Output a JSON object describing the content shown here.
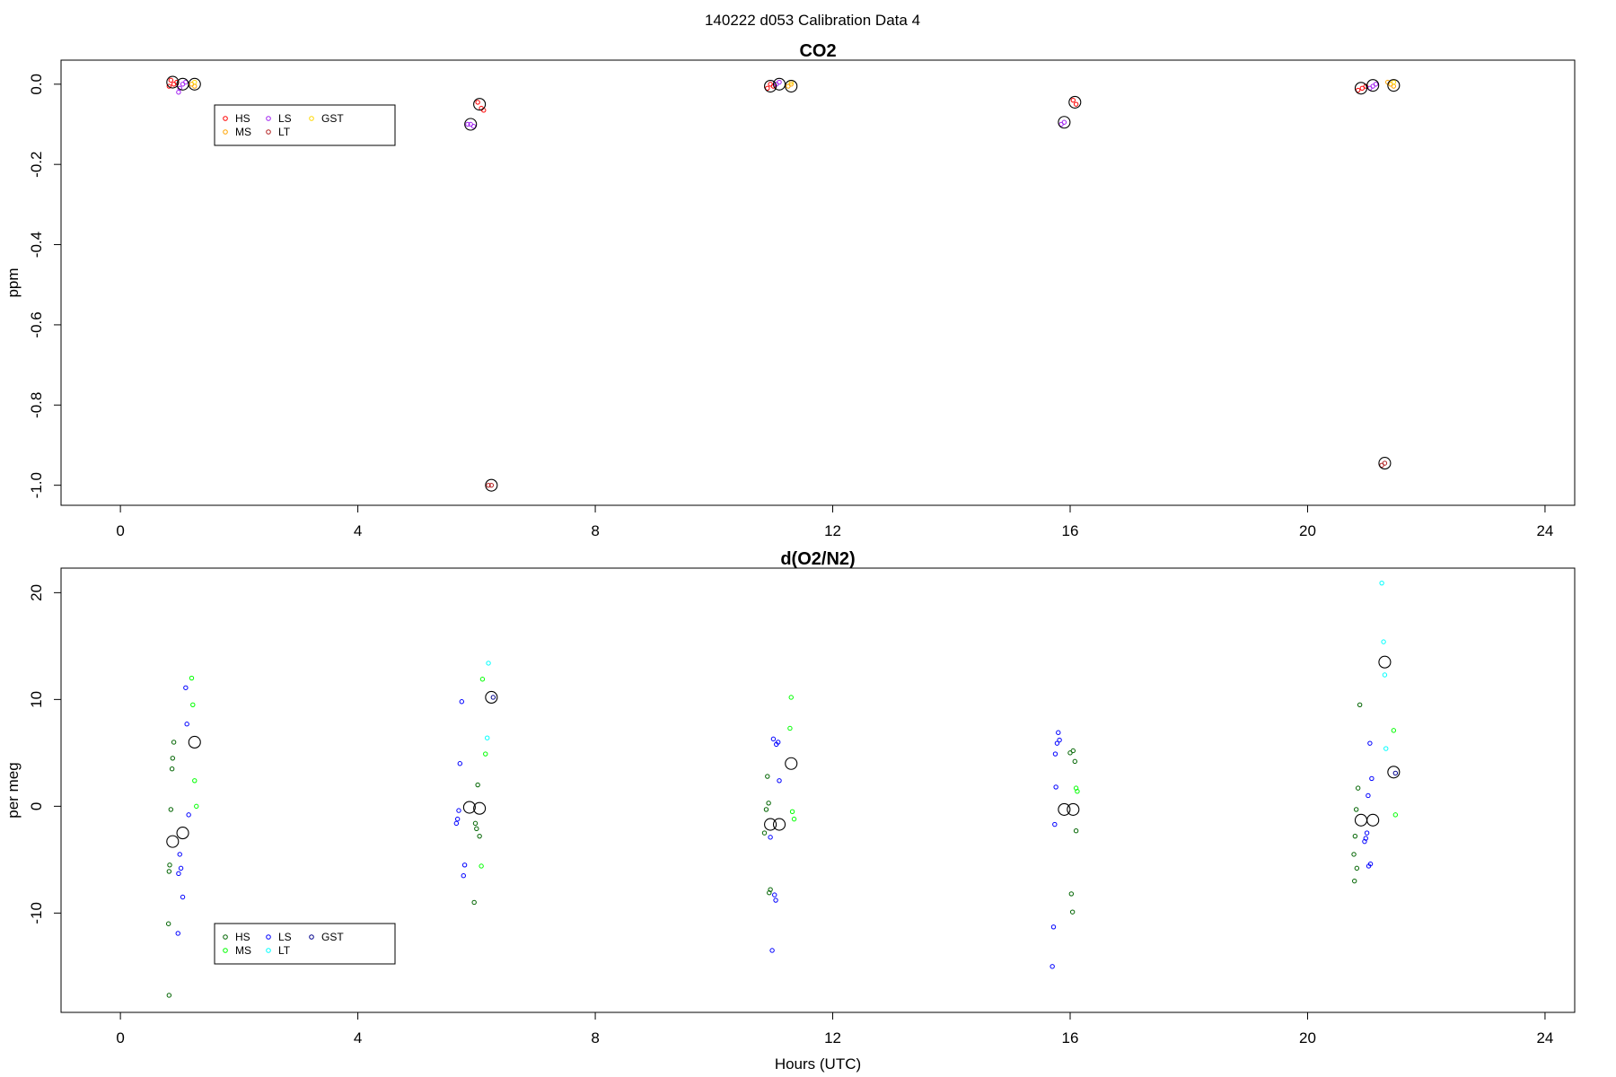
{
  "suptitle": "140222   d053   Calibration Data 4",
  "chart_data": [
    {
      "type": "scatter",
      "title": "CO2",
      "xlabel": "",
      "ylabel": "ppm",
      "xlim": [
        -1.0,
        24.5
      ],
      "ylim": [
        -1.05,
        0.06
      ],
      "xticks": [
        0,
        4,
        8,
        12,
        16,
        20,
        24
      ],
      "xticklabels": [
        "0",
        "4",
        "8",
        "12",
        "16",
        "20",
        "24"
      ],
      "yticks": [
        0.0,
        -0.2,
        -0.4,
        -0.6,
        -0.8,
        -1.0
      ],
      "yticklabels": [
        "0.0",
        "-0.2",
        "-0.4",
        "-0.6",
        "-0.8",
        "-1.0"
      ],
      "grid": false,
      "legend": {
        "placement": "top-left",
        "entries": [
          {
            "label": "HS",
            "color": "#ff0000"
          },
          {
            "label": "MS",
            "color": "#ffa500"
          },
          {
            "label": "LS",
            "color": "#a020f0"
          },
          {
            "label": "LT",
            "color": "#b22222"
          },
          {
            "label": "GST",
            "color": "#ffd700"
          }
        ]
      },
      "series": [
        {
          "name": "HS",
          "color": "#ff0000",
          "points": [
            [
              0.85,
              0.01
            ],
            [
              0.9,
              0.0
            ],
            [
              0.95,
              0.005
            ],
            [
              0.82,
              -0.005
            ],
            [
              6.02,
              -0.045
            ],
            [
              6.08,
              -0.06
            ],
            [
              6.12,
              -0.065
            ],
            [
              10.9,
              -0.01
            ],
            [
              10.95,
              0.0
            ],
            [
              11.0,
              -0.005
            ],
            [
              16.05,
              -0.04
            ],
            [
              16.1,
              -0.05
            ],
            [
              20.85,
              -0.015
            ],
            [
              20.92,
              -0.01
            ],
            [
              20.98,
              -0.005
            ]
          ]
        },
        {
          "name": "MS",
          "color": "#ffa500",
          "points": [
            [
              1.2,
              0.0
            ],
            [
              1.25,
              -0.005
            ],
            [
              11.25,
              -0.005
            ],
            [
              11.3,
              0.0
            ],
            [
              21.4,
              0.0
            ],
            [
              21.45,
              -0.005
            ],
            [
              21.35,
              0.005
            ]
          ]
        },
        {
          "name": "LS",
          "color": "#a020f0",
          "points": [
            [
              1.0,
              -0.01
            ],
            [
              1.05,
              0.0
            ],
            [
              1.1,
              0.005
            ],
            [
              0.98,
              -0.02
            ],
            [
              5.85,
              -0.1
            ],
            [
              5.9,
              -0.1
            ],
            [
              5.95,
              -0.105
            ],
            [
              11.05,
              0.0
            ],
            [
              11.1,
              0.005
            ],
            [
              15.85,
              -0.1
            ],
            [
              15.9,
              -0.095
            ],
            [
              21.1,
              -0.005
            ],
            [
              21.15,
              0.0
            ],
            [
              21.05,
              -0.01
            ]
          ]
        },
        {
          "name": "LT",
          "color": "#b22222",
          "points": [
            [
              6.25,
              -1.0
            ],
            [
              6.2,
              -1.0
            ],
            [
              21.3,
              -0.945
            ],
            [
              21.25,
              -0.95
            ]
          ]
        },
        {
          "name": "GST",
          "color": "#ffd700",
          "points": [
            [
              1.25,
              0.005
            ],
            [
              11.3,
              0.005
            ],
            [
              21.45,
              0.005
            ]
          ]
        },
        {
          "name": "",
          "color": "#000000",
          "big": true,
          "points": [
            [
              0.88,
              0.005
            ],
            [
              1.05,
              0.0
            ],
            [
              1.25,
              0.0
            ],
            [
              5.9,
              -0.1
            ],
            [
              6.05,
              -0.05
            ],
            [
              6.25,
              -1.0
            ],
            [
              10.95,
              -0.005
            ],
            [
              11.1,
              0.0
            ],
            [
              11.3,
              -0.005
            ],
            [
              15.9,
              -0.095
            ],
            [
              16.08,
              -0.045
            ],
            [
              20.9,
              -0.01
            ],
            [
              21.1,
              -0.003
            ],
            [
              21.3,
              -0.945
            ],
            [
              21.45,
              -0.003
            ]
          ]
        }
      ]
    },
    {
      "type": "scatter",
      "title": "d(O2/N2)",
      "xlabel": "Hours (UTC)",
      "ylabel": "per meg",
      "xlim": [
        -1.0,
        24.5
      ],
      "ylim": [
        -19.3,
        22.3
      ],
      "xticks": [
        0,
        4,
        8,
        12,
        16,
        20,
        24
      ],
      "xticklabels": [
        "0",
        "4",
        "8",
        "12",
        "16",
        "20",
        "24"
      ],
      "yticks": [
        20,
        10,
        0,
        -10
      ],
      "yticklabels": [
        "20",
        "10",
        "0",
        "-10"
      ],
      "grid": false,
      "legend": {
        "placement": "bottom-left",
        "entries": [
          {
            "label": "HS",
            "color": "#006400"
          },
          {
            "label": "MS",
            "color": "#00ff00"
          },
          {
            "label": "LS",
            "color": "#0000ff"
          },
          {
            "label": "LT",
            "color": "#00ffff"
          },
          {
            "label": "GST",
            "color": "#00008b"
          }
        ]
      },
      "series": [
        {
          "name": "HS",
          "color": "#006400",
          "points": [
            [
              0.9,
              6.0
            ],
            [
              0.88,
              4.5
            ],
            [
              0.87,
              3.5
            ],
            [
              0.85,
              -0.3
            ],
            [
              0.83,
              -5.5
            ],
            [
              0.82,
              -6.1
            ],
            [
              0.81,
              -11.0
            ],
            [
              0.82,
              -17.7
            ],
            [
              6.02,
              2.0
            ],
            [
              6.0,
              -2.1
            ],
            [
              5.98,
              -1.6
            ],
            [
              5.96,
              -9.0
            ],
            [
              6.05,
              -2.8
            ],
            [
              10.9,
              2.8
            ],
            [
              10.92,
              0.3
            ],
            [
              10.88,
              -0.3
            ],
            [
              10.85,
              -2.5
            ],
            [
              10.95,
              -7.8
            ],
            [
              10.93,
              -8.1
            ],
            [
              16.0,
              5.0
            ],
            [
              16.05,
              5.2
            ],
            [
              16.1,
              -2.3
            ],
            [
              16.08,
              4.2
            ],
            [
              16.02,
              -8.2
            ],
            [
              16.04,
              -9.9
            ],
            [
              20.88,
              9.5
            ],
            [
              20.85,
              1.7
            ],
            [
              20.82,
              -0.3
            ],
            [
              20.8,
              -2.8
            ],
            [
              20.78,
              -4.5
            ],
            [
              20.83,
              -5.8
            ],
            [
              20.79,
              -7.0
            ]
          ]
        },
        {
          "name": "MS",
          "color": "#00ff00",
          "points": [
            [
              1.2,
              12.0
            ],
            [
              1.22,
              9.5
            ],
            [
              1.25,
              2.4
            ],
            [
              1.28,
              0.0
            ],
            [
              6.1,
              11.9
            ],
            [
              6.15,
              4.9
            ],
            [
              6.08,
              -5.6
            ],
            [
              11.3,
              10.2
            ],
            [
              11.28,
              7.3
            ],
            [
              11.32,
              -0.5
            ],
            [
              11.35,
              -1.2
            ],
            [
              16.1,
              1.7
            ],
            [
              16.12,
              1.4
            ],
            [
              21.45,
              7.1
            ],
            [
              21.48,
              -0.8
            ]
          ]
        },
        {
          "name": "LS",
          "color": "#0000ff",
          "points": [
            [
              1.1,
              11.1
            ],
            [
              1.12,
              7.7
            ],
            [
              1.15,
              -0.8
            ],
            [
              1.0,
              -4.5
            ],
            [
              1.02,
              -5.8
            ],
            [
              0.98,
              -6.3
            ],
            [
              1.05,
              -8.5
            ],
            [
              0.97,
              -11.9
            ],
            [
              5.75,
              9.8
            ],
            [
              5.72,
              4.0
            ],
            [
              5.7,
              -0.4
            ],
            [
              5.68,
              -1.2
            ],
            [
              5.66,
              -1.6
            ],
            [
              5.8,
              -5.5
            ],
            [
              5.78,
              -6.5
            ],
            [
              10.95,
              -2.9
            ],
            [
              11.0,
              6.3
            ],
            [
              11.05,
              5.8
            ],
            [
              11.08,
              6.0
            ],
            [
              11.1,
              2.4
            ],
            [
              11.02,
              -8.3
            ],
            [
              11.04,
              -8.8
            ],
            [
              10.98,
              -13.5
            ],
            [
              15.8,
              6.9
            ],
            [
              15.82,
              6.2
            ],
            [
              15.78,
              5.9
            ],
            [
              15.75,
              4.9
            ],
            [
              15.76,
              1.8
            ],
            [
              15.74,
              -1.7
            ],
            [
              15.72,
              -11.3
            ],
            [
              15.7,
              -15.0
            ],
            [
              21.05,
              5.9
            ],
            [
              21.08,
              2.6
            ],
            [
              21.02,
              1.0
            ],
            [
              21.0,
              -2.5
            ],
            [
              20.98,
              -3.0
            ],
            [
              20.96,
              -3.3
            ],
            [
              21.06,
              -5.4
            ],
            [
              21.03,
              -5.6
            ]
          ]
        },
        {
          "name": "LT",
          "color": "#00ffff",
          "points": [
            [
              6.2,
              13.4
            ],
            [
              6.18,
              6.4
            ],
            [
              21.25,
              20.9
            ],
            [
              21.28,
              15.4
            ],
            [
              21.3,
              12.3
            ],
            [
              21.32,
              5.4
            ]
          ]
        },
        {
          "name": "GST",
          "color": "#00008b",
          "points": [
            [
              6.28,
              10.2
            ],
            [
              21.48,
              3.1
            ]
          ]
        },
        {
          "name": "",
          "color": "#000000",
          "big": true,
          "points": [
            [
              0.88,
              -3.3
            ],
            [
              1.05,
              -2.5
            ],
            [
              1.25,
              6.0
            ],
            [
              5.88,
              -0.1
            ],
            [
              6.05,
              -0.2
            ],
            [
              6.25,
              10.2
            ],
            [
              10.95,
              -1.7
            ],
            [
              11.1,
              -1.7
            ],
            [
              11.3,
              4.0
            ],
            [
              15.9,
              -0.3
            ],
            [
              16.05,
              -0.3
            ],
            [
              20.9,
              -1.3
            ],
            [
              21.1,
              -1.3
            ],
            [
              21.3,
              13.5
            ],
            [
              21.45,
              3.2
            ]
          ]
        }
      ]
    }
  ]
}
